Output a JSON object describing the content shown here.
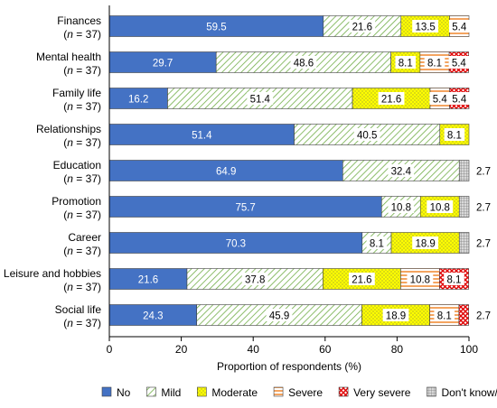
{
  "chart_data": {
    "type": "bar",
    "orientation": "horizontal",
    "stacked": true,
    "categories": [
      {
        "name": "Finances",
        "n_prefix": "(",
        "n_var": "n",
        "n_value": " = 37)"
      },
      {
        "name": "Mental health",
        "n_prefix": "(",
        "n_var": "n",
        "n_value": " = 37)"
      },
      {
        "name": "Family life",
        "n_prefix": "(",
        "n_var": "n",
        "n_value": " = 37)"
      },
      {
        "name": "Relationships",
        "n_prefix": "(",
        "n_var": "n",
        "n_value": " = 37)"
      },
      {
        "name": "Education",
        "n_prefix": "(",
        "n_var": "n",
        "n_value": " = 37)"
      },
      {
        "name": "Promotion",
        "n_prefix": "(",
        "n_var": "n",
        "n_value": " = 37)"
      },
      {
        "name": "Career",
        "n_prefix": "(",
        "n_var": "n",
        "n_value": " = 37)"
      },
      {
        "name": "Leisure and hobbies",
        "n_prefix": "(",
        "n_var": "n",
        "n_value": " = 37)"
      },
      {
        "name": "Social life",
        "n_prefix": "(",
        "n_var": "n",
        "n_value": " = 37)"
      }
    ],
    "series": [
      {
        "name": "No",
        "color": "#4472c4",
        "pattern": "solid",
        "values": [
          59.5,
          29.7,
          16.2,
          51.4,
          64.9,
          75.7,
          70.3,
          21.6,
          24.3
        ],
        "labels": [
          "59.5",
          "29.7",
          "16.2",
          "51.4",
          "64.9",
          "75.7",
          "70.3",
          "21.6",
          "24.3"
        ]
      },
      {
        "name": "Mild",
        "color": "#70ad47",
        "pattern": "diagonal-stripes",
        "values": [
          21.6,
          48.6,
          51.4,
          40.5,
          32.4,
          10.8,
          8.1,
          37.8,
          45.9
        ],
        "labels": [
          "21.6",
          "48.6",
          "51.4",
          "40.5",
          "32.4",
          "10.8",
          "8.1",
          "37.8",
          "45.9"
        ]
      },
      {
        "name": "Moderate",
        "color": "#ffff00",
        "pattern": "dots",
        "values": [
          13.5,
          8.1,
          21.6,
          8.1,
          0,
          10.8,
          18.9,
          21.6,
          18.9
        ],
        "labels": [
          "13.5",
          "8.1",
          "21.6",
          "8.1",
          "",
          "10.8",
          "18.9",
          "21.6",
          "18.9"
        ]
      },
      {
        "name": "Severe",
        "color": "#f4b183",
        "pattern": "horizontal-stripes",
        "values": [
          5.4,
          8.1,
          5.4,
          0,
          0,
          0,
          0,
          10.8,
          8.1
        ],
        "labels": [
          "5.4",
          "8.1",
          "5.4",
          "",
          "",
          "",
          "",
          "10.8",
          "8.1"
        ]
      },
      {
        "name": "Very severe",
        "color": "#ff0000",
        "pattern": "checker",
        "values": [
          0,
          5.4,
          5.4,
          0,
          0,
          0,
          0,
          8.1,
          2.7
        ],
        "labels": [
          "",
          "5.4",
          "5.4",
          "",
          "",
          "",
          "",
          "8.1",
          ""
        ]
      },
      {
        "name": "Don't know/NA",
        "color": "#a6a6a6",
        "pattern": "grid",
        "values": [
          0,
          0,
          0,
          0,
          2.7,
          2.7,
          2.7,
          0,
          0
        ],
        "labels": [
          "",
          "",
          "",
          "",
          "",
          "",
          "",
          "",
          ""
        ]
      }
    ],
    "outside_labels": [
      "",
      "",
      "",
      "",
      "2.7",
      "2.7",
      "2.7",
      "",
      "2.7"
    ],
    "xlabel": "Proportion of respondents (%)",
    "xlim": [
      0,
      100
    ],
    "xticks": [
      "0",
      "20",
      "40",
      "60",
      "80",
      "100"
    ],
    "legend_position": "bottom",
    "grid": false
  }
}
